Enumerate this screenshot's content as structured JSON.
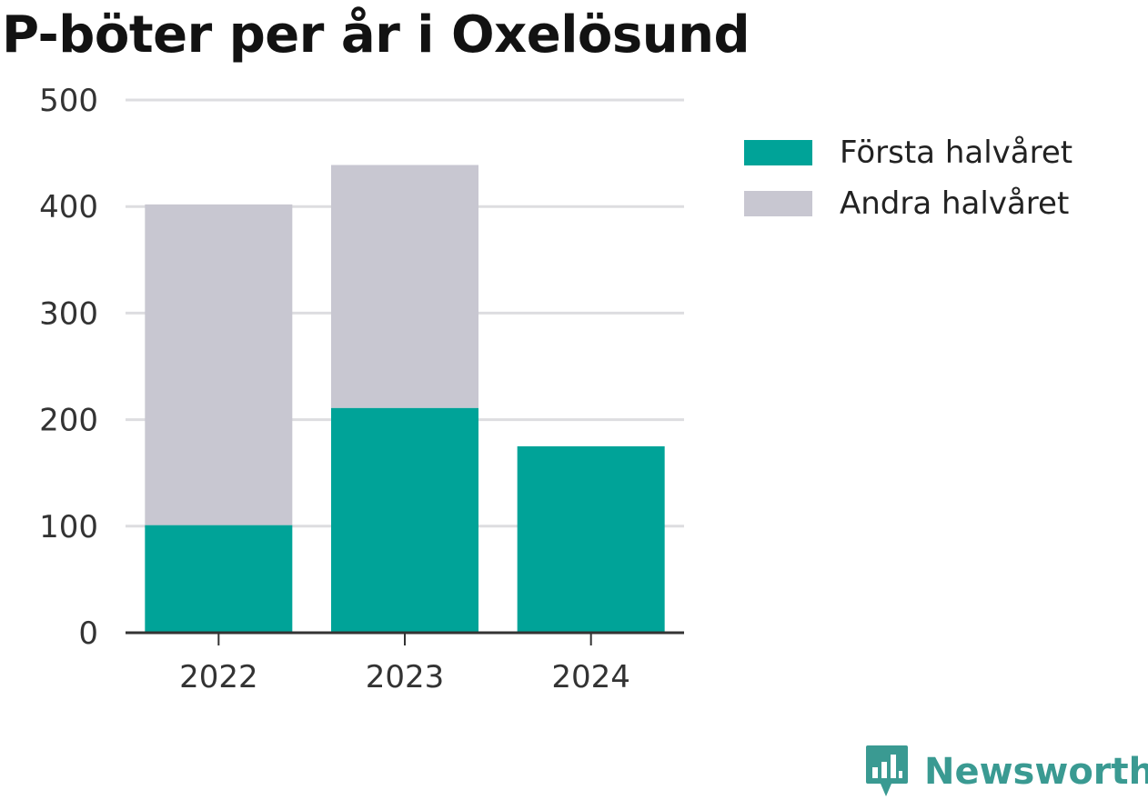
{
  "chart_data": {
    "type": "bar",
    "stacked": true,
    "title": "P-böter per år i Oxelösund",
    "categories": [
      "2022",
      "2023",
      "2024"
    ],
    "series": [
      {
        "name": "Första halvåret",
        "color": "#00a398",
        "values": [
          101,
          211,
          175
        ]
      },
      {
        "name": "Andra halvåret",
        "color": "#c8c7d1",
        "values": [
          301,
          228,
          0
        ]
      }
    ],
    "ylim": [
      0,
      500
    ],
    "yticks": [
      "0",
      "100",
      "200",
      "300",
      "400",
      "500"
    ],
    "grid": true,
    "legend_position": "right"
  },
  "brand": {
    "name": "Newsworthy",
    "color": "#3a9a92",
    "icon": "chart-bubble-icon"
  }
}
